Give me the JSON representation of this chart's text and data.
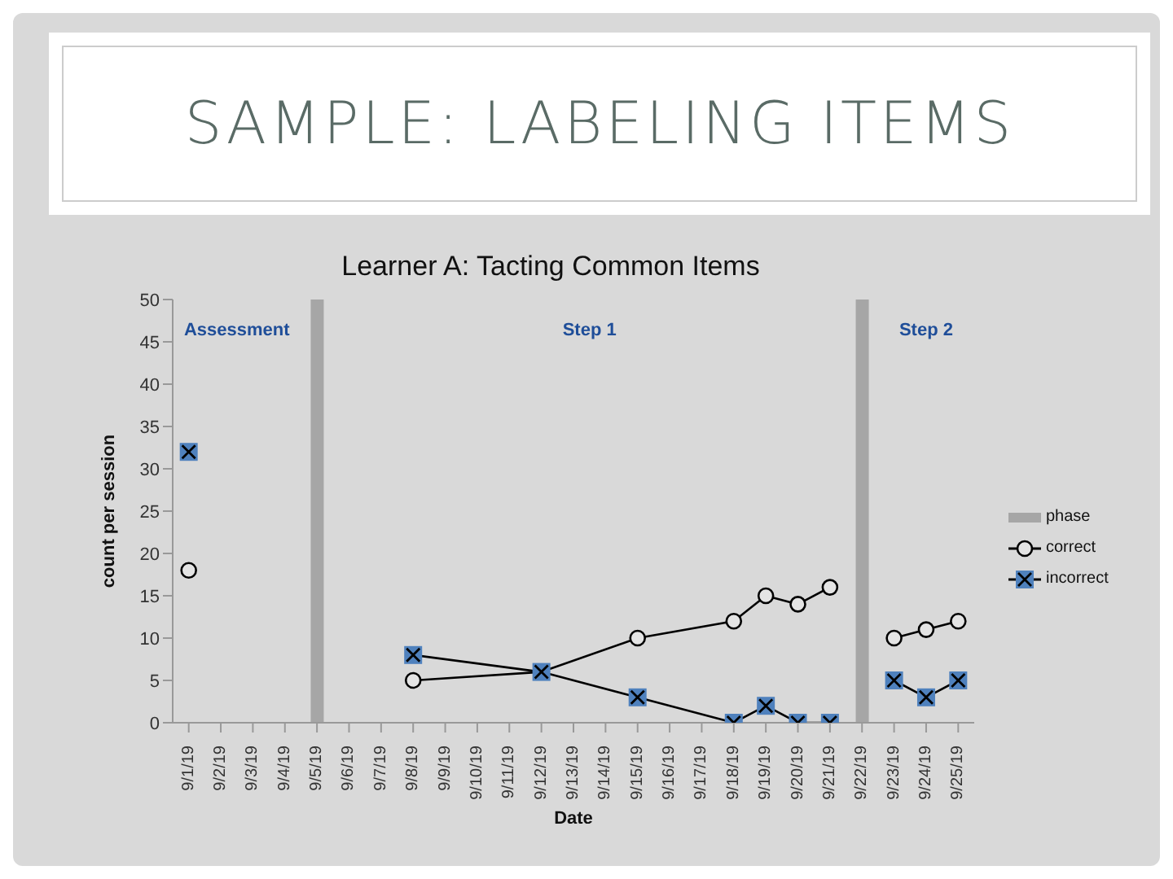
{
  "chart_data": {
    "type": "line",
    "title": "SAMPLE: LABELING ITEMS",
    "subtitle": "Learner A: Tacting Common Items",
    "xlabel": "Date",
    "ylabel": "count per session",
    "categories": [
      "9/1/19",
      "9/2/19",
      "9/3/19",
      "9/4/19",
      "9/5/19",
      "9/6/19",
      "9/7/19",
      "9/8/19",
      "9/9/19",
      "9/10/19",
      "9/11/19",
      "9/12/19",
      "9/13/19",
      "9/14/19",
      "9/15/19",
      "9/16/19",
      "9/17/19",
      "9/18/19",
      "9/19/19",
      "9/20/19",
      "9/21/19",
      "9/22/19",
      "9/23/19",
      "9/24/19",
      "9/25/19"
    ],
    "series": [
      {
        "name": "phase",
        "type": "bar",
        "color": "#a6a6a6",
        "values": [
          null,
          null,
          null,
          null,
          50,
          null,
          null,
          null,
          null,
          null,
          null,
          null,
          null,
          null,
          null,
          null,
          null,
          null,
          null,
          null,
          null,
          50,
          null,
          null,
          null
        ]
      },
      {
        "name": "correct",
        "color": "#000000",
        "marker": "circle",
        "values": [
          18,
          null,
          null,
          null,
          null,
          null,
          null,
          5,
          null,
          null,
          null,
          6,
          null,
          null,
          10,
          null,
          null,
          12,
          15,
          14,
          16,
          null,
          10,
          11,
          12
        ]
      },
      {
        "name": "incorrect",
        "color": "#4f81bd",
        "marker": "square",
        "values": [
          32,
          null,
          null,
          null,
          null,
          null,
          null,
          8,
          null,
          null,
          null,
          6,
          null,
          null,
          3,
          null,
          null,
          0,
          2,
          0,
          0,
          null,
          5,
          3,
          5
        ]
      }
    ],
    "annotations": [
      "Assessment",
      "Step 1",
      "Step 2"
    ],
    "ylim": [
      0,
      50
    ],
    "yticks": [
      0,
      5,
      10,
      15,
      20,
      25,
      30,
      35,
      40,
      45,
      50
    ],
    "legend": "right"
  }
}
